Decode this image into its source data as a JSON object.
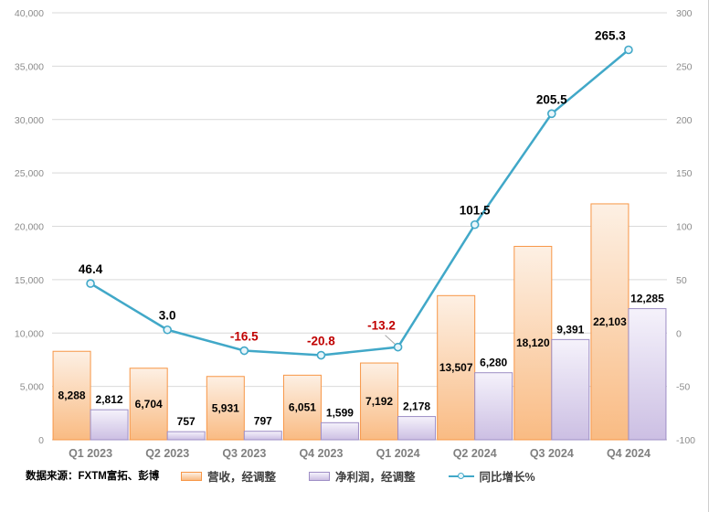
{
  "source": {
    "text": "数据来源：FXTM富拓、彭博"
  },
  "chart_data": {
    "type": "combo",
    "categories": [
      "Q1 2023",
      "Q2 2023",
      "Q3 2023",
      "Q4 2023",
      "Q1 2024",
      "Q2 2024",
      "Q3 2024",
      "Q4 2024"
    ],
    "series": [
      {
        "name": "营收，经调整",
        "type": "bar",
        "axis": "left",
        "values": [
          8288,
          6704,
          5931,
          6051,
          7192,
          13507,
          18120,
          22103
        ],
        "border_color": "#F79646",
        "fill_top": "#FDF0E4",
        "fill_bottom": "#F9BB83",
        "label_position": "inside-center"
      },
      {
        "name": "净利润，经调整",
        "type": "bar",
        "axis": "left",
        "values": [
          2812,
          757,
          797,
          1599,
          2178,
          6280,
          9391,
          12285
        ],
        "border_color": "#9E8EC5",
        "fill_top": "#F5F2FB",
        "fill_bottom": "#CCBFE3",
        "label_position": "outside-top"
      },
      {
        "name": "同比增长%",
        "type": "line",
        "axis": "right",
        "values": [
          46.4,
          3.0,
          -16.5,
          -20.8,
          -13.2,
          101.5,
          205.5,
          265.3
        ],
        "color": "#41A8C8",
        "marker_fill": "#E9F6FB",
        "positive_label_color": "#000000",
        "negative_label_color": "#C00000",
        "label_offsets": {
          "4": [
            -18,
            -8
          ],
          "7": [
            -20,
            0
          ]
        },
        "leader_index": 4,
        "leader_color": "#A6A6A6"
      }
    ],
    "left_axis": {
      "min": 0,
      "max": 40000,
      "step": 5000
    },
    "right_axis": {
      "min": -100,
      "max": 300,
      "step": 50
    },
    "grid": {
      "color": "#D9D9D9",
      "baseline_color": "#BFBFBF"
    },
    "legend_position": "bottom"
  }
}
